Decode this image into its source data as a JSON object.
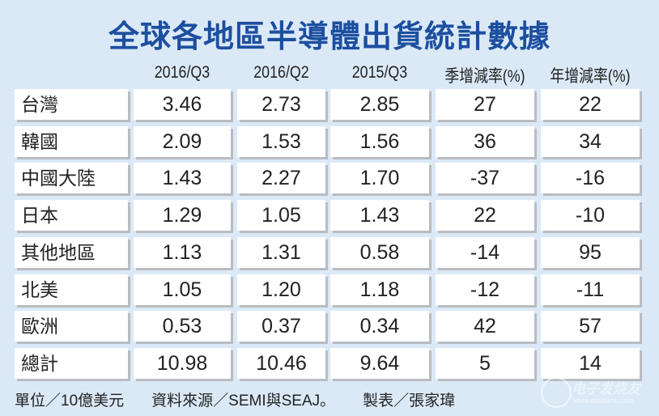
{
  "title": "全球各地區半導體出貨統計數據",
  "chart_data": {
    "type": "table",
    "title": "全球各地區半導體出貨統計數據",
    "columns": [
      "",
      "2016/Q3",
      "2016/Q2",
      "2015/Q3",
      "季增減率(%)",
      "年增減率(%)"
    ],
    "rows": [
      [
        "台灣",
        "3.46",
        "2.73",
        "2.85",
        "27",
        "22"
      ],
      [
        "韓國",
        "2.09",
        "1.53",
        "1.56",
        "36",
        "34"
      ],
      [
        "中國大陸",
        "1.43",
        "2.27",
        "1.70",
        "-37",
        "-16"
      ],
      [
        "日本",
        "1.29",
        "1.05",
        "1.43",
        "22",
        "-10"
      ],
      [
        "其他地區",
        "1.13",
        "1.31",
        "0.58",
        "-14",
        "95"
      ],
      [
        "北美",
        "1.05",
        "1.20",
        "1.18",
        "-12",
        "-11"
      ],
      [
        "歐洲",
        "0.53",
        "0.37",
        "0.34",
        "42",
        "57"
      ],
      [
        "總計",
        "10.98",
        "10.46",
        "9.64",
        "5",
        "14"
      ]
    ]
  },
  "footer": {
    "unit": "單位／10億美元",
    "source": "資料來源／SEMI與SEAJ。",
    "author": "製表／張家瑋"
  },
  "watermark": {
    "name": "电子发烧友",
    "url": "www.elecfans.com"
  },
  "colors": {
    "title": "#1d4f9f",
    "background": "#dbe9f7"
  }
}
